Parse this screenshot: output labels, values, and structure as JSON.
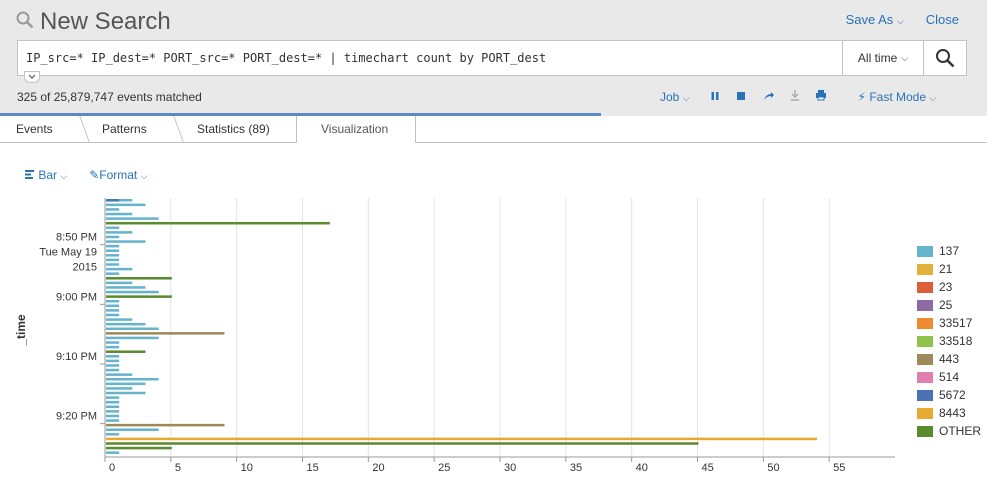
{
  "header": {
    "title": "New Search",
    "save_as": "Save As",
    "close": "Close",
    "query": "IP_src=* IP_dest=* PORT_src=* PORT_dest=* | timechart count by PORT_dest",
    "time_range": "All time",
    "events_matched": "325 of 25,879,747 events matched",
    "job_label": "Job",
    "mode_label": "Fast Mode"
  },
  "tabs": [
    {
      "label": "Events"
    },
    {
      "label": "Patterns"
    },
    {
      "label": "Statistics (89)"
    },
    {
      "label": "Visualization"
    }
  ],
  "viz_controls": {
    "chart_type": "Bar",
    "format": "Format"
  },
  "colors": {
    "accent": "#2a72b8",
    "progress": "#5a8ac6"
  },
  "chart_data": {
    "type": "bar",
    "orientation": "horizontal",
    "ylabel": "_time",
    "xlabel": "",
    "xlim": [
      0,
      60
    ],
    "x_ticks": [
      "0",
      "5",
      "10",
      "15",
      "20",
      "25",
      "30",
      "35",
      "40",
      "45",
      "50",
      "55"
    ],
    "y_tick_labels": [
      {
        "label": "8:50 PM",
        "sub": "Tue May 19",
        "sub2": "2015"
      },
      {
        "label": "9:00 PM"
      },
      {
        "label": "9:10 PM"
      },
      {
        "label": "9:20 PM"
      }
    ],
    "grid": true,
    "legend_position": "right",
    "series": [
      {
        "name": "137",
        "color": "#65b4cc"
      },
      {
        "name": "21",
        "color": "#e0b23b"
      },
      {
        "name": "23",
        "color": "#d9603b"
      },
      {
        "name": "25",
        "color": "#8e6aa2"
      },
      {
        "name": "33517",
        "color": "#ef8a2f"
      },
      {
        "name": "33518",
        "color": "#8fc34a"
      },
      {
        "name": "443",
        "color": "#9c8a5a"
      },
      {
        "name": "514",
        "color": "#e07fb0"
      },
      {
        "name": "5672",
        "color": "#4a72b5"
      },
      {
        "name": "8443",
        "color": "#e7a92f"
      },
      {
        "name": "OTHER",
        "color": "#5c8a2f"
      }
    ],
    "bars": [
      {
        "t": 0,
        "series": "137",
        "value": 2
      },
      {
        "t": 0,
        "series": "5672",
        "value": 1
      },
      {
        "t": 1,
        "series": "137",
        "value": 3
      },
      {
        "t": 2,
        "series": "137",
        "value": 1
      },
      {
        "t": 3,
        "series": "137",
        "value": 2
      },
      {
        "t": 4,
        "series": "137",
        "value": 4
      },
      {
        "t": 5,
        "series": "OTHER",
        "value": 17
      },
      {
        "t": 6,
        "series": "137",
        "value": 1
      },
      {
        "t": 7,
        "series": "137",
        "value": 2
      },
      {
        "t": 8,
        "series": "137",
        "value": 1
      },
      {
        "t": 9,
        "series": "137",
        "value": 3
      },
      {
        "t": 10,
        "series": "137",
        "value": 1
      },
      {
        "t": 11,
        "series": "137",
        "value": 1
      },
      {
        "t": 12,
        "series": "137",
        "value": 1
      },
      {
        "t": 13,
        "series": "137",
        "value": 1
      },
      {
        "t": 14,
        "series": "137",
        "value": 1
      },
      {
        "t": 15,
        "series": "137",
        "value": 2
      },
      {
        "t": 16,
        "series": "137",
        "value": 1
      },
      {
        "t": 17,
        "series": "OTHER",
        "value": 5
      },
      {
        "t": 18,
        "series": "137",
        "value": 2
      },
      {
        "t": 19,
        "series": "137",
        "value": 3
      },
      {
        "t": 20,
        "series": "137",
        "value": 4
      },
      {
        "t": 21,
        "series": "OTHER",
        "value": 5
      },
      {
        "t": 22,
        "series": "137",
        "value": 1
      },
      {
        "t": 23,
        "series": "137",
        "value": 1
      },
      {
        "t": 24,
        "series": "137",
        "value": 1
      },
      {
        "t": 25,
        "series": "137",
        "value": 1
      },
      {
        "t": 26,
        "series": "137",
        "value": 2
      },
      {
        "t": 27,
        "series": "137",
        "value": 3
      },
      {
        "t": 28,
        "series": "137",
        "value": 4
      },
      {
        "t": 29,
        "series": "443",
        "value": 9
      },
      {
        "t": 30,
        "series": "137",
        "value": 4
      },
      {
        "t": 31,
        "series": "137",
        "value": 1
      },
      {
        "t": 32,
        "series": "137",
        "value": 1
      },
      {
        "t": 33,
        "series": "OTHER",
        "value": 3
      },
      {
        "t": 34,
        "series": "137",
        "value": 1
      },
      {
        "t": 35,
        "series": "137",
        "value": 1
      },
      {
        "t": 36,
        "series": "137",
        "value": 1
      },
      {
        "t": 37,
        "series": "137",
        "value": 1
      },
      {
        "t": 38,
        "series": "137",
        "value": 2
      },
      {
        "t": 39,
        "series": "137",
        "value": 4
      },
      {
        "t": 40,
        "series": "137",
        "value": 3
      },
      {
        "t": 41,
        "series": "137",
        "value": 2
      },
      {
        "t": 42,
        "series": "137",
        "value": 3
      },
      {
        "t": 43,
        "series": "137",
        "value": 1
      },
      {
        "t": 44,
        "series": "137",
        "value": 1
      },
      {
        "t": 45,
        "series": "137",
        "value": 1
      },
      {
        "t": 46,
        "series": "137",
        "value": 1
      },
      {
        "t": 47,
        "series": "137",
        "value": 1
      },
      {
        "t": 48,
        "series": "137",
        "value": 1
      },
      {
        "t": 49,
        "series": "443",
        "value": 9
      },
      {
        "t": 50,
        "series": "137",
        "value": 4
      },
      {
        "t": 51,
        "series": "137",
        "value": 1
      },
      {
        "t": 52,
        "series": "8443",
        "value": 54
      },
      {
        "t": 53,
        "series": "OTHER",
        "value": 45
      },
      {
        "t": 54,
        "series": "OTHER",
        "value": 5
      },
      {
        "t": 55,
        "series": "137",
        "value": 1
      }
    ]
  }
}
